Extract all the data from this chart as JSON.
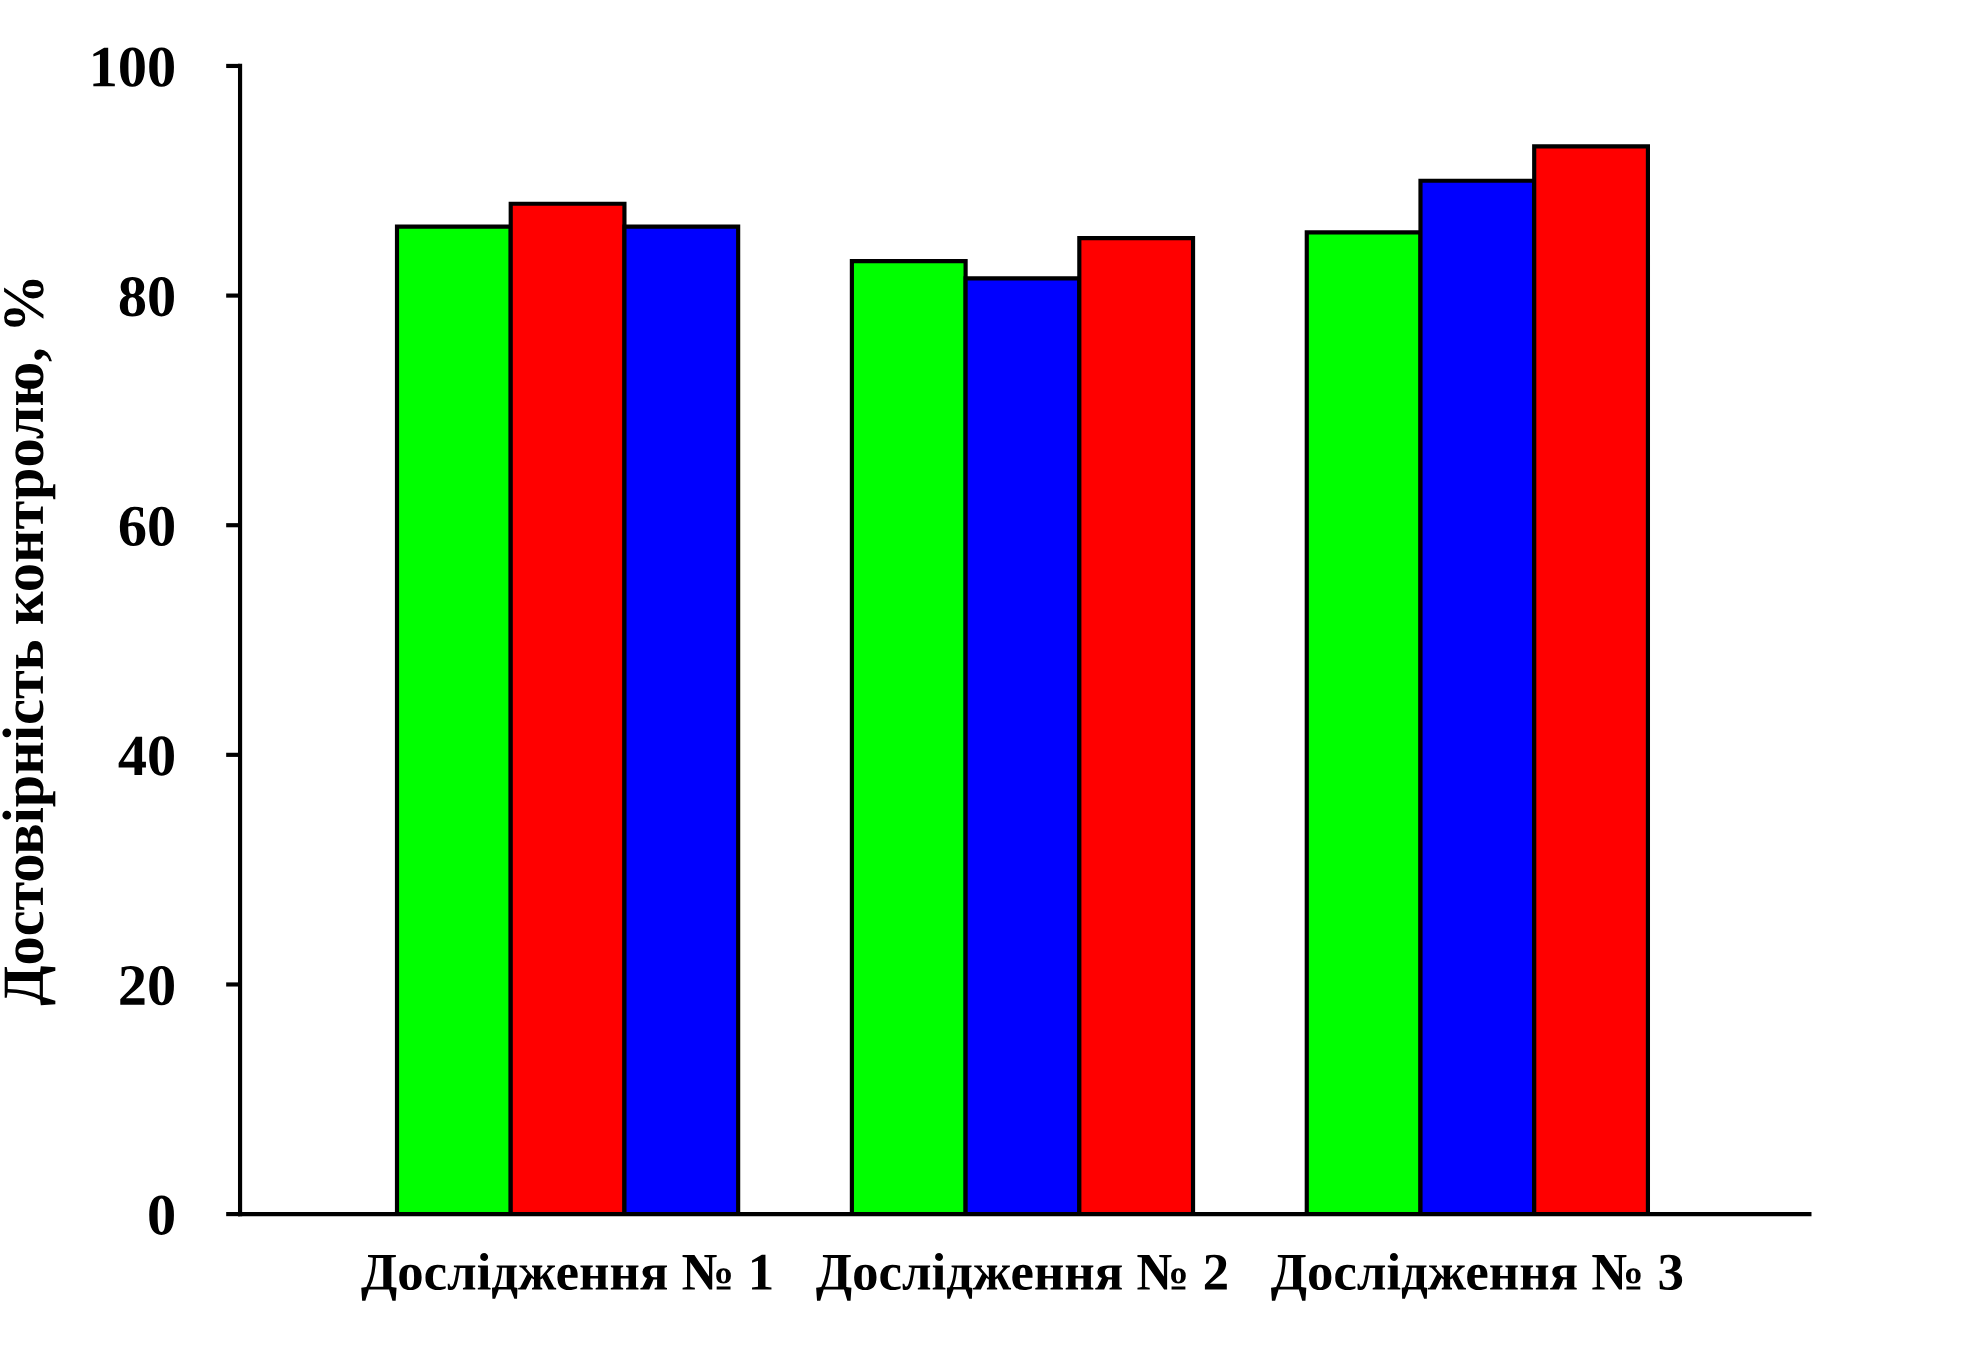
{
  "chart_data": {
    "type": "bar",
    "ylabel": "Достовірність контролю, %",
    "categories": [
      "Дослідження № 1",
      "Дослідження № 2",
      "Дослідження № 3"
    ],
    "series": [
      {
        "colors": [
          "#00ff00",
          "#00ff00",
          "#00ff00"
        ],
        "values": [
          86,
          83,
          85.5
        ]
      },
      {
        "colors": [
          "#ff0000",
          "#0000ff",
          "#0000ff"
        ],
        "values": [
          88,
          81.5,
          90
        ]
      },
      {
        "colors": [
          "#0000ff",
          "#ff0000",
          "#ff0000"
        ],
        "values": [
          86,
          85,
          93
        ]
      }
    ],
    "ylim": [
      0,
      100
    ],
    "yticks": [
      0,
      20,
      40,
      60,
      80,
      100
    ],
    "grid": false,
    "legend": false
  }
}
